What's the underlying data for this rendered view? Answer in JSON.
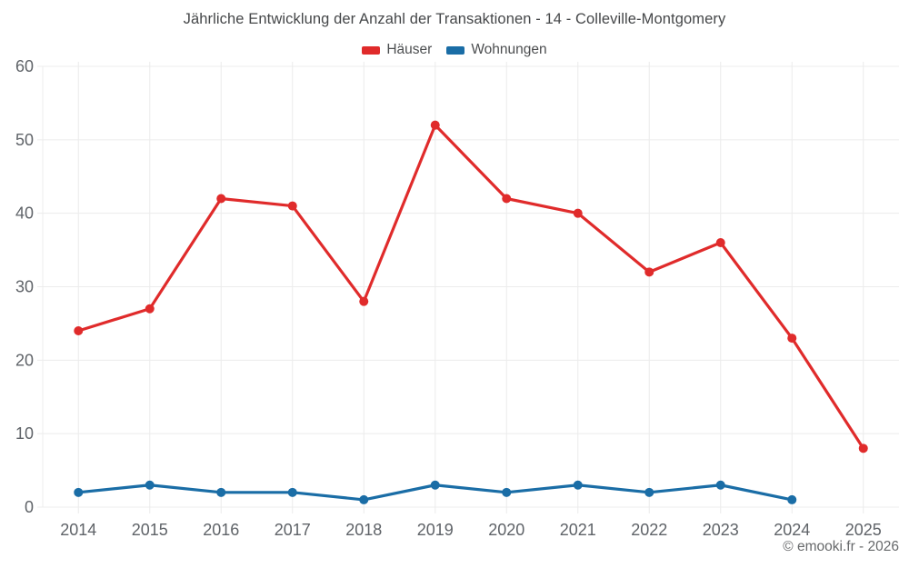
{
  "title": "Jährliche Entwicklung der Anzahl der Transaktionen - 14 - Colleville-Montgomery",
  "legend": {
    "items": [
      {
        "label": "Häuser",
        "slug": "haeuser",
        "color": "#e02b2b"
      },
      {
        "label": "Wohnungen",
        "slug": "wohnungen",
        "color": "#1a6da6"
      }
    ]
  },
  "footer": {
    "copyright": "© emooki.fr - 2026"
  },
  "chart_data": {
    "type": "line",
    "title": "Jährliche Entwicklung der Anzahl der Transaktionen - 14 - Colleville-Montgomery",
    "categories": [
      "2014",
      "2015",
      "2016",
      "2017",
      "2018",
      "2019",
      "2020",
      "2021",
      "2022",
      "2023",
      "2024",
      "2025"
    ],
    "series": [
      {
        "name": "Häuser",
        "slug": "haeuser",
        "color": "#e02b2b",
        "values": [
          24,
          27,
          42,
          41,
          28,
          52,
          42,
          40,
          32,
          36,
          23,
          8
        ]
      },
      {
        "name": "Wohnungen",
        "slug": "wohnungen",
        "color": "#1a6da6",
        "values": [
          2,
          3,
          2,
          2,
          1,
          3,
          2,
          3,
          2,
          3,
          1,
          null
        ]
      }
    ],
    "xlabel": "",
    "ylabel": "",
    "ylim": [
      0,
      60
    ],
    "yticks": [
      0,
      10,
      20,
      30,
      40,
      50,
      60
    ],
    "grid": true,
    "legend_position": "top",
    "axis_text_color": "#5f6368",
    "grid_color": "#ececec"
  }
}
